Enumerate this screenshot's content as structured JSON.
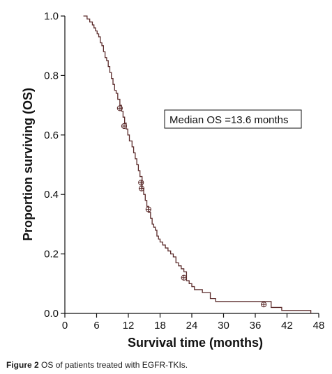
{
  "chart_data": {
    "type": "line",
    "xlabel": "Survival time (months)",
    "ylabel": "Proportion surviving (OS)",
    "xlim": [
      0,
      48
    ],
    "ylim": [
      0,
      1
    ],
    "x_ticks": [
      0,
      6,
      12,
      18,
      24,
      30,
      36,
      42,
      48
    ],
    "y_ticks": [
      0.0,
      0.2,
      0.4,
      0.6,
      0.8,
      1.0
    ],
    "y_tick_labels": [
      "0.0",
      "0.2",
      "0.4",
      "0.6",
      "0.8",
      "1.0"
    ],
    "grid": false,
    "annotation": "Median OS =13.6 months",
    "line_color": "#5a2a2a",
    "series": [
      {
        "step": [
          [
            3.5,
            1.0
          ],
          [
            4.2,
            0.99
          ],
          [
            4.7,
            0.98
          ],
          [
            5.2,
            0.97
          ],
          [
            5.5,
            0.96
          ],
          [
            5.8,
            0.95
          ],
          [
            6.1,
            0.94
          ],
          [
            6.4,
            0.93
          ],
          [
            6.7,
            0.91
          ],
          [
            7.0,
            0.9
          ],
          [
            7.3,
            0.88
          ],
          [
            7.6,
            0.86
          ],
          [
            7.9,
            0.85
          ],
          [
            8.2,
            0.83
          ],
          [
            8.5,
            0.81
          ],
          [
            8.8,
            0.79
          ],
          [
            9.1,
            0.77
          ],
          [
            9.4,
            0.75
          ],
          [
            9.7,
            0.74
          ],
          [
            10.0,
            0.72
          ],
          [
            10.4,
            0.7
          ],
          [
            10.7,
            0.68
          ],
          [
            11.0,
            0.66
          ],
          [
            11.3,
            0.64
          ],
          [
            11.6,
            0.62
          ],
          [
            11.9,
            0.6
          ],
          [
            12.2,
            0.58
          ],
          [
            12.7,
            0.56
          ],
          [
            13.0,
            0.54
          ],
          [
            13.3,
            0.52
          ],
          [
            13.6,
            0.5
          ],
          [
            13.9,
            0.48
          ],
          [
            14.2,
            0.46
          ],
          [
            14.6,
            0.42
          ],
          [
            14.9,
            0.4
          ],
          [
            15.2,
            0.38
          ],
          [
            15.5,
            0.36
          ],
          [
            15.8,
            0.34
          ],
          [
            16.2,
            0.32
          ],
          [
            16.5,
            0.3
          ],
          [
            16.8,
            0.29
          ],
          [
            17.1,
            0.28
          ],
          [
            17.4,
            0.26
          ],
          [
            17.7,
            0.25
          ],
          [
            18.0,
            0.24
          ],
          [
            18.5,
            0.23
          ],
          [
            19.0,
            0.22
          ],
          [
            19.5,
            0.21
          ],
          [
            20.0,
            0.2
          ],
          [
            20.5,
            0.19
          ],
          [
            21.0,
            0.17
          ],
          [
            21.5,
            0.16
          ],
          [
            22.0,
            0.15
          ],
          [
            22.5,
            0.14
          ],
          [
            23.0,
            0.11
          ],
          [
            23.5,
            0.1
          ],
          [
            24.0,
            0.09
          ],
          [
            24.5,
            0.08
          ],
          [
            26.0,
            0.07
          ],
          [
            27.5,
            0.05
          ],
          [
            28.5,
            0.04
          ],
          [
            39.0,
            0.02
          ],
          [
            41.0,
            0.01
          ],
          [
            46.5,
            0.0
          ]
        ],
        "end_x": 46.5,
        "censored": [
          [
            10.4,
            0.69
          ],
          [
            11.2,
            0.63
          ],
          [
            14.4,
            0.44
          ],
          [
            14.5,
            0.42
          ],
          [
            15.8,
            0.35
          ],
          [
            22.5,
            0.12
          ],
          [
            37.6,
            0.03
          ]
        ]
      }
    ]
  },
  "caption": {
    "figure_label": "Figure 2",
    "text": "OS of patients treated with EGFR-TKIs."
  }
}
